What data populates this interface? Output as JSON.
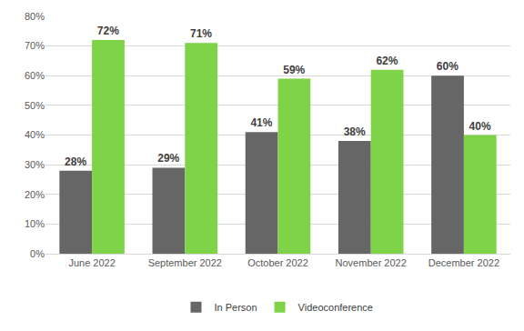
{
  "chart_data": {
    "type": "bar",
    "categories": [
      "June 2022",
      "September 2022",
      "October 2022",
      "November 2022",
      "December 2022"
    ],
    "series": [
      {
        "name": "In Person",
        "color": "#666666",
        "values": [
          28,
          29,
          41,
          38,
          60
        ],
        "value_labels": [
          "28%",
          "29%",
          "41%",
          "38%",
          "60%"
        ]
      },
      {
        "name": "Videoconference",
        "color": "#7ed348",
        "values": [
          72,
          71,
          59,
          62,
          40
        ],
        "value_labels": [
          "72%",
          "71%",
          "59%",
          "62%",
          "40%"
        ]
      }
    ],
    "ylim": [
      0,
      80
    ],
    "yticks": [
      {
        "value": 0,
        "label": "0%"
      },
      {
        "value": 10,
        "label": "10%"
      },
      {
        "value": 20,
        "label": "20%"
      },
      {
        "value": 30,
        "label": "30%"
      },
      {
        "value": 40,
        "label": "40%"
      },
      {
        "value": 50,
        "label": "50%"
      },
      {
        "value": 60,
        "label": "60%"
      },
      {
        "value": 70,
        "label": "70%"
      },
      {
        "value": 80,
        "label": "80%"
      }
    ],
    "grid": true,
    "legend": "bottom",
    "data_labels": true
  }
}
